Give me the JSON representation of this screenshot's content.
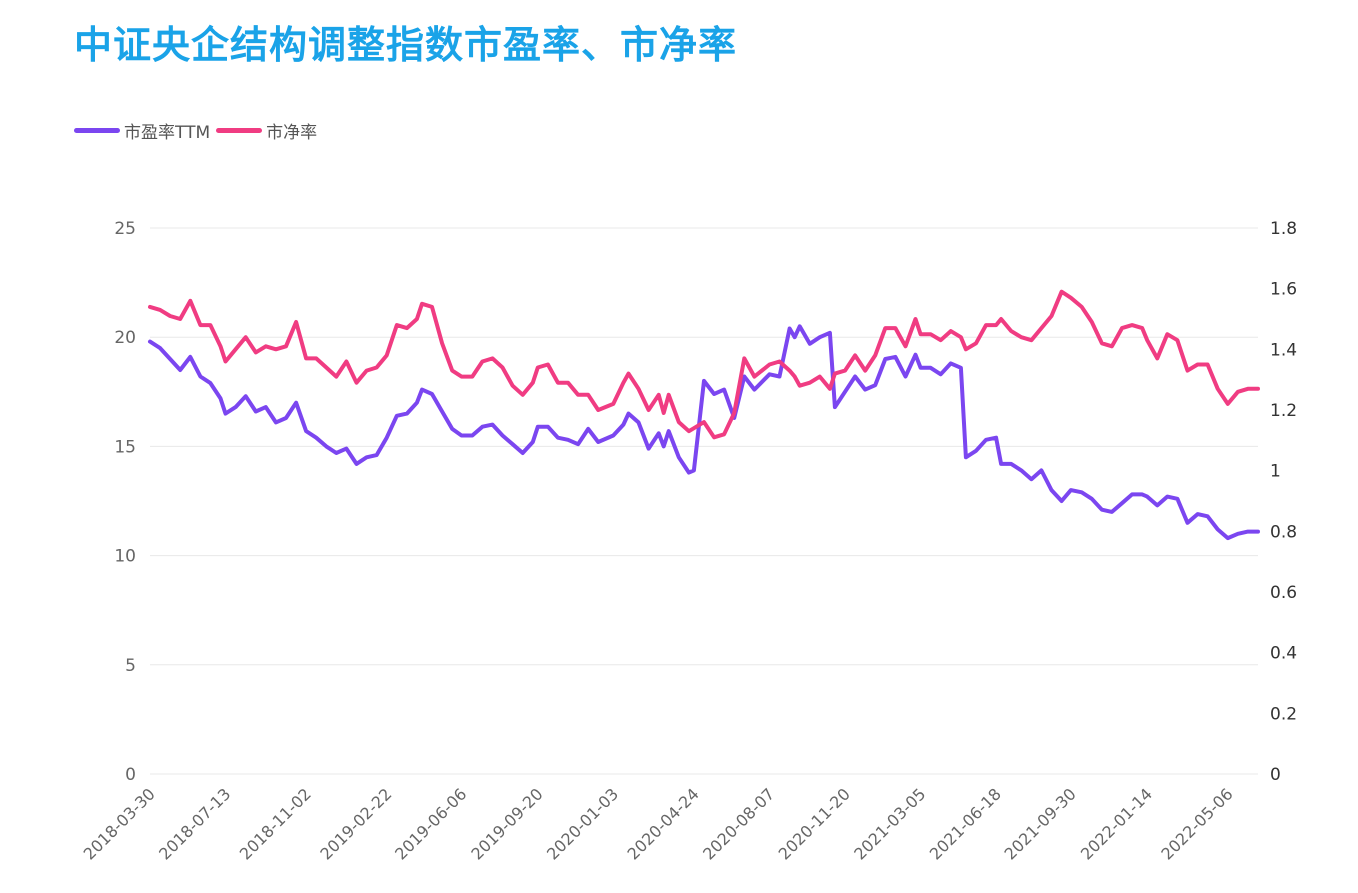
{
  "title": "中证央企结构调整指数市盈率、市净率",
  "legend": {
    "pe_label": "市盈率TTM",
    "pb_label": "市净率"
  },
  "colors": {
    "title": "#1aa3e8",
    "pe": "#7b46f0",
    "pb": "#f03c82",
    "grid": "#e8e8e8"
  },
  "chart_data": {
    "type": "line",
    "title": "中证央企结构调整指数市盈率、市净率",
    "x_tick_labels": [
      "2018-03-30",
      "2018-07-13",
      "2018-11-02",
      "2019-02-22",
      "2019-06-06",
      "2019-09-20",
      "2020-01-03",
      "2020-04-24",
      "2020-08-07",
      "2020-11-20",
      "2021-03-05",
      "2021-06-18",
      "2021-09-30",
      "2022-01-14",
      "2022-05-06"
    ],
    "x_range": [
      "2018-03-30",
      "2022-06-17"
    ],
    "y_left": {
      "ticks": [
        "0",
        "5",
        "10",
        "15",
        "20",
        "25"
      ],
      "range": [
        0,
        25
      ]
    },
    "y_right": {
      "ticks": [
        "0",
        "0.2",
        "0.4",
        "0.6",
        "0.8",
        "1",
        "1.2",
        "1.4",
        "1.6",
        "1.8"
      ],
      "range": [
        0,
        1.8
      ]
    },
    "grid": true,
    "legend_position": "top-left",
    "series": [
      {
        "name": "市盈率TTM",
        "axis": "left",
        "color": "#7b46f0",
        "points": [
          [
            "2018-03-30",
            19.8
          ],
          [
            "2018-04-13",
            19.5
          ],
          [
            "2018-04-27",
            19.0
          ],
          [
            "2018-05-11",
            18.5
          ],
          [
            "2018-05-25",
            19.1
          ],
          [
            "2018-06-08",
            18.2
          ],
          [
            "2018-06-22",
            17.9
          ],
          [
            "2018-07-06",
            17.2
          ],
          [
            "2018-07-13",
            16.5
          ],
          [
            "2018-07-27",
            16.8
          ],
          [
            "2018-08-10",
            17.3
          ],
          [
            "2018-08-24",
            16.6
          ],
          [
            "2018-09-07",
            16.8
          ],
          [
            "2018-09-21",
            16.1
          ],
          [
            "2018-10-05",
            16.3
          ],
          [
            "2018-10-19",
            17.0
          ],
          [
            "2018-11-02",
            15.7
          ],
          [
            "2018-11-16",
            15.4
          ],
          [
            "2018-11-30",
            15.0
          ],
          [
            "2018-12-14",
            14.7
          ],
          [
            "2018-12-28",
            14.9
          ],
          [
            "2019-01-11",
            14.2
          ],
          [
            "2019-01-25",
            14.5
          ],
          [
            "2019-02-08",
            14.6
          ],
          [
            "2019-02-22",
            15.4
          ],
          [
            "2019-03-08",
            16.4
          ],
          [
            "2019-03-22",
            16.5
          ],
          [
            "2019-04-05",
            17.0
          ],
          [
            "2019-04-12",
            17.6
          ],
          [
            "2019-04-26",
            17.4
          ],
          [
            "2019-05-10",
            16.6
          ],
          [
            "2019-05-24",
            15.8
          ],
          [
            "2019-06-06",
            15.5
          ],
          [
            "2019-06-21",
            15.5
          ],
          [
            "2019-07-05",
            15.9
          ],
          [
            "2019-07-19",
            16.0
          ],
          [
            "2019-08-02",
            15.5
          ],
          [
            "2019-08-16",
            15.1
          ],
          [
            "2019-08-30",
            14.7
          ],
          [
            "2019-09-13",
            15.2
          ],
          [
            "2019-09-20",
            15.9
          ],
          [
            "2019-10-04",
            15.9
          ],
          [
            "2019-10-18",
            15.4
          ],
          [
            "2019-11-01",
            15.3
          ],
          [
            "2019-11-15",
            15.1
          ],
          [
            "2019-11-29",
            15.8
          ],
          [
            "2019-12-13",
            15.2
          ],
          [
            "2020-01-03",
            15.5
          ],
          [
            "2020-01-17",
            16.0
          ],
          [
            "2020-01-24",
            16.5
          ],
          [
            "2020-02-07",
            16.1
          ],
          [
            "2020-02-21",
            14.9
          ],
          [
            "2020-03-06",
            15.6
          ],
          [
            "2020-03-13",
            15.0
          ],
          [
            "2020-03-20",
            15.7
          ],
          [
            "2020-04-03",
            14.5
          ],
          [
            "2020-04-17",
            13.8
          ],
          [
            "2020-04-24",
            13.9
          ],
          [
            "2020-05-08",
            18.0
          ],
          [
            "2020-05-22",
            17.4
          ],
          [
            "2020-06-05",
            17.6
          ],
          [
            "2020-06-19",
            16.3
          ],
          [
            "2020-07-03",
            18.2
          ],
          [
            "2020-07-17",
            17.6
          ],
          [
            "2020-08-07",
            18.3
          ],
          [
            "2020-08-21",
            18.2
          ],
          [
            "2020-09-04",
            20.4
          ],
          [
            "2020-09-11",
            20.0
          ],
          [
            "2020-09-18",
            20.5
          ],
          [
            "2020-10-02",
            19.7
          ],
          [
            "2020-10-16",
            20.0
          ],
          [
            "2020-10-30",
            20.2
          ],
          [
            "2020-11-06",
            16.8
          ],
          [
            "2020-11-20",
            17.5
          ],
          [
            "2020-12-04",
            18.2
          ],
          [
            "2020-12-18",
            17.6
          ],
          [
            "2021-01-01",
            17.8
          ],
          [
            "2021-01-15",
            19.0
          ],
          [
            "2021-01-29",
            19.1
          ],
          [
            "2021-02-12",
            18.2
          ],
          [
            "2021-02-26",
            19.2
          ],
          [
            "2021-03-05",
            18.6
          ],
          [
            "2021-03-19",
            18.6
          ],
          [
            "2021-04-02",
            18.3
          ],
          [
            "2021-04-16",
            18.8
          ],
          [
            "2021-04-30",
            18.6
          ],
          [
            "2021-05-07",
            14.5
          ],
          [
            "2021-05-21",
            14.8
          ],
          [
            "2021-06-04",
            15.3
          ],
          [
            "2021-06-18",
            15.4
          ],
          [
            "2021-06-25",
            14.2
          ],
          [
            "2021-07-09",
            14.2
          ],
          [
            "2021-07-23",
            13.9
          ],
          [
            "2021-08-06",
            13.5
          ],
          [
            "2021-08-20",
            13.9
          ],
          [
            "2021-09-03",
            13.0
          ],
          [
            "2021-09-17",
            12.5
          ],
          [
            "2021-09-30",
            13.0
          ],
          [
            "2021-10-15",
            12.9
          ],
          [
            "2021-10-29",
            12.6
          ],
          [
            "2021-11-12",
            12.1
          ],
          [
            "2021-11-26",
            12.0
          ],
          [
            "2021-12-10",
            12.4
          ],
          [
            "2021-12-24",
            12.8
          ],
          [
            "2022-01-07",
            12.8
          ],
          [
            "2022-01-14",
            12.7
          ],
          [
            "2022-01-28",
            12.3
          ],
          [
            "2022-02-11",
            12.7
          ],
          [
            "2022-02-25",
            12.6
          ],
          [
            "2022-03-11",
            11.5
          ],
          [
            "2022-03-25",
            11.9
          ],
          [
            "2022-04-08",
            11.8
          ],
          [
            "2022-04-22",
            11.2
          ],
          [
            "2022-05-06",
            10.8
          ],
          [
            "2022-05-20",
            11.0
          ],
          [
            "2022-06-03",
            11.1
          ],
          [
            "2022-06-17",
            11.1
          ]
        ]
      },
      {
        "name": "市净率",
        "axis": "right",
        "color": "#f03c82",
        "points": [
          [
            "2018-03-30",
            1.54
          ],
          [
            "2018-04-13",
            1.53
          ],
          [
            "2018-04-27",
            1.51
          ],
          [
            "2018-05-11",
            1.5
          ],
          [
            "2018-05-25",
            1.56
          ],
          [
            "2018-06-08",
            1.48
          ],
          [
            "2018-06-22",
            1.48
          ],
          [
            "2018-07-06",
            1.41
          ],
          [
            "2018-07-13",
            1.36
          ],
          [
            "2018-07-27",
            1.4
          ],
          [
            "2018-08-10",
            1.44
          ],
          [
            "2018-08-24",
            1.39
          ],
          [
            "2018-09-07",
            1.41
          ],
          [
            "2018-09-21",
            1.4
          ],
          [
            "2018-10-05",
            1.41
          ],
          [
            "2018-10-19",
            1.49
          ],
          [
            "2018-11-02",
            1.37
          ],
          [
            "2018-11-16",
            1.37
          ],
          [
            "2018-11-30",
            1.34
          ],
          [
            "2018-12-14",
            1.31
          ],
          [
            "2018-12-28",
            1.36
          ],
          [
            "2019-01-11",
            1.29
          ],
          [
            "2019-01-25",
            1.33
          ],
          [
            "2019-02-08",
            1.34
          ],
          [
            "2019-02-22",
            1.38
          ],
          [
            "2019-03-08",
            1.48
          ],
          [
            "2019-03-22",
            1.47
          ],
          [
            "2019-04-05",
            1.5
          ],
          [
            "2019-04-12",
            1.55
          ],
          [
            "2019-04-26",
            1.54
          ],
          [
            "2019-05-10",
            1.42
          ],
          [
            "2019-05-24",
            1.33
          ],
          [
            "2019-06-06",
            1.31
          ],
          [
            "2019-06-21",
            1.31
          ],
          [
            "2019-07-05",
            1.36
          ],
          [
            "2019-07-19",
            1.37
          ],
          [
            "2019-08-02",
            1.34
          ],
          [
            "2019-08-16",
            1.28
          ],
          [
            "2019-08-30",
            1.25
          ],
          [
            "2019-09-13",
            1.29
          ],
          [
            "2019-09-20",
            1.34
          ],
          [
            "2019-10-04",
            1.35
          ],
          [
            "2019-10-18",
            1.29
          ],
          [
            "2019-11-01",
            1.29
          ],
          [
            "2019-11-15",
            1.25
          ],
          [
            "2019-11-29",
            1.25
          ],
          [
            "2019-12-13",
            1.2
          ],
          [
            "2020-01-03",
            1.22
          ],
          [
            "2020-01-17",
            1.29
          ],
          [
            "2020-01-24",
            1.32
          ],
          [
            "2020-02-07",
            1.27
          ],
          [
            "2020-02-21",
            1.2
          ],
          [
            "2020-03-06",
            1.25
          ],
          [
            "2020-03-13",
            1.19
          ],
          [
            "2020-03-20",
            1.25
          ],
          [
            "2020-04-03",
            1.16
          ],
          [
            "2020-04-17",
            1.13
          ],
          [
            "2020-04-24",
            1.14
          ],
          [
            "2020-05-08",
            1.16
          ],
          [
            "2020-05-22",
            1.11
          ],
          [
            "2020-06-05",
            1.12
          ],
          [
            "2020-06-19",
            1.19
          ],
          [
            "2020-07-03",
            1.37
          ],
          [
            "2020-07-17",
            1.31
          ],
          [
            "2020-08-07",
            1.35
          ],
          [
            "2020-08-21",
            1.36
          ],
          [
            "2020-09-04",
            1.33
          ],
          [
            "2020-09-11",
            1.31
          ],
          [
            "2020-09-18",
            1.28
          ],
          [
            "2020-10-02",
            1.29
          ],
          [
            "2020-10-16",
            1.31
          ],
          [
            "2020-10-30",
            1.27
          ],
          [
            "2020-11-06",
            1.32
          ],
          [
            "2020-11-20",
            1.33
          ],
          [
            "2020-12-04",
            1.38
          ],
          [
            "2020-12-18",
            1.33
          ],
          [
            "2021-01-01",
            1.38
          ],
          [
            "2021-01-15",
            1.47
          ],
          [
            "2021-01-29",
            1.47
          ],
          [
            "2021-02-12",
            1.41
          ],
          [
            "2021-02-26",
            1.5
          ],
          [
            "2021-03-05",
            1.45
          ],
          [
            "2021-03-19",
            1.45
          ],
          [
            "2021-04-02",
            1.43
          ],
          [
            "2021-04-16",
            1.46
          ],
          [
            "2021-04-30",
            1.44
          ],
          [
            "2021-05-07",
            1.4
          ],
          [
            "2021-05-21",
            1.42
          ],
          [
            "2021-06-04",
            1.48
          ],
          [
            "2021-06-18",
            1.48
          ],
          [
            "2021-06-25",
            1.5
          ],
          [
            "2021-07-09",
            1.46
          ],
          [
            "2021-07-23",
            1.44
          ],
          [
            "2021-08-06",
            1.43
          ],
          [
            "2021-08-20",
            1.47
          ],
          [
            "2021-09-03",
            1.51
          ],
          [
            "2021-09-17",
            1.59
          ],
          [
            "2021-09-30",
            1.57
          ],
          [
            "2021-10-15",
            1.54
          ],
          [
            "2021-10-29",
            1.49
          ],
          [
            "2021-11-12",
            1.42
          ],
          [
            "2021-11-26",
            1.41
          ],
          [
            "2021-12-10",
            1.47
          ],
          [
            "2021-12-24",
            1.48
          ],
          [
            "2022-01-07",
            1.47
          ],
          [
            "2022-01-14",
            1.43
          ],
          [
            "2022-01-28",
            1.37
          ],
          [
            "2022-02-11",
            1.45
          ],
          [
            "2022-02-25",
            1.43
          ],
          [
            "2022-03-11",
            1.33
          ],
          [
            "2022-03-25",
            1.35
          ],
          [
            "2022-04-08",
            1.35
          ],
          [
            "2022-04-22",
            1.27
          ],
          [
            "2022-05-06",
            1.22
          ],
          [
            "2022-05-20",
            1.26
          ],
          [
            "2022-06-03",
            1.27
          ],
          [
            "2022-06-17",
            1.27
          ]
        ]
      }
    ]
  }
}
